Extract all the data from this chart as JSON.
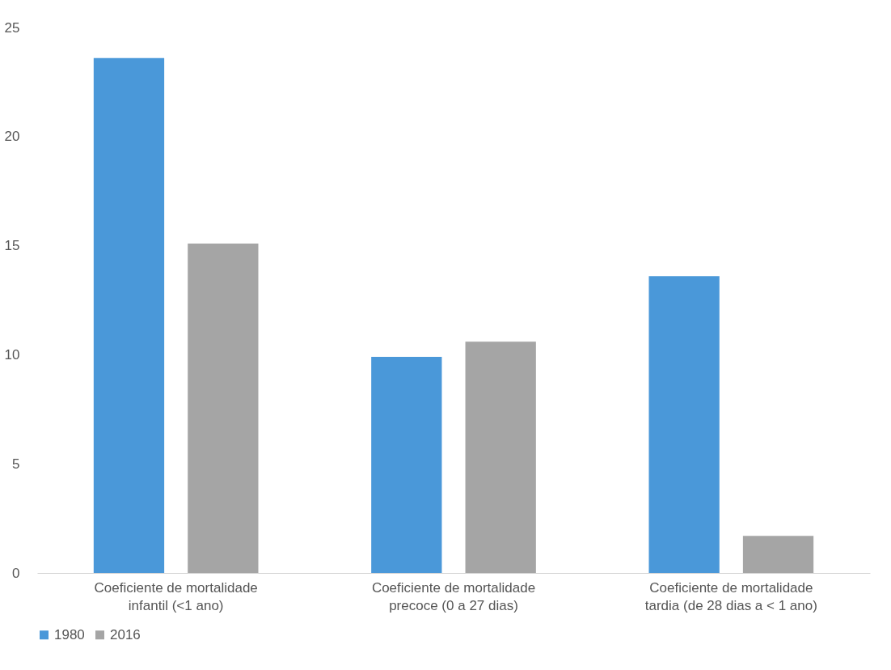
{
  "chart_data": {
    "type": "bar",
    "categories": [
      "Coeficiente de mortalidade infantil (<1 ano)",
      "Coeficiente de mortalidade precoce (0 a 27 dias)",
      "Coeficiente de mortalidade tardia (de 28 dias a < 1 ano)"
    ],
    "series": [
      {
        "name": "1980",
        "color": "#4a98d9",
        "values": [
          23.6,
          9.9,
          13.6
        ]
      },
      {
        "name": "2016",
        "color": "#a5a5a5",
        "values": [
          15.1,
          10.6,
          1.7
        ]
      }
    ],
    "ylim": [
      0,
      25
    ],
    "yticks": [
      0,
      5,
      10,
      15,
      20,
      25
    ],
    "grid": false,
    "legend": "bottom"
  }
}
